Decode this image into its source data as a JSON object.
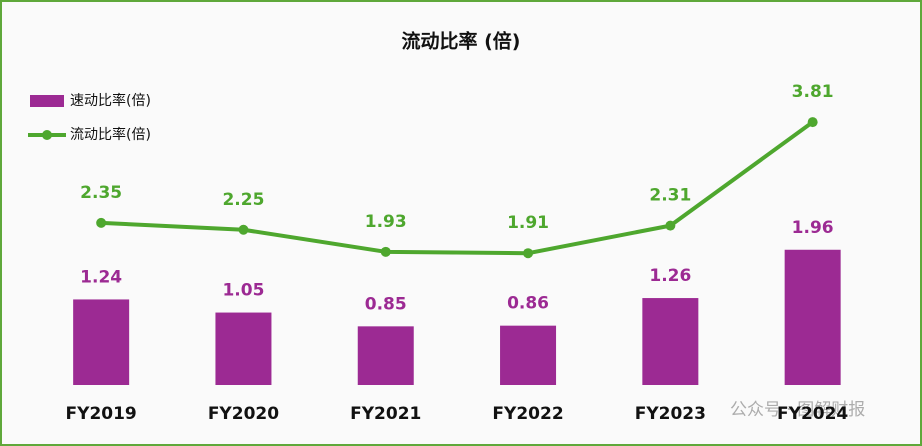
{
  "chart_data": {
    "type": "bar_line",
    "title": "流动比率 (倍)",
    "categories": [
      "FY2019",
      "FY2020",
      "FY2021",
      "FY2022",
      "FY2023",
      "FY2024"
    ],
    "series": [
      {
        "name": "速动比率(倍)",
        "type": "bar",
        "color": "#9c2a93",
        "values": [
          1.24,
          1.05,
          0.85,
          0.86,
          1.26,
          1.96
        ]
      },
      {
        "name": "流动比率(倍)",
        "type": "line",
        "color": "#4ea72e",
        "values": [
          2.35,
          2.25,
          1.93,
          1.91,
          2.31,
          3.81
        ]
      }
    ],
    "legend": "top-left",
    "watermark": "公众号 · 图解财报"
  }
}
